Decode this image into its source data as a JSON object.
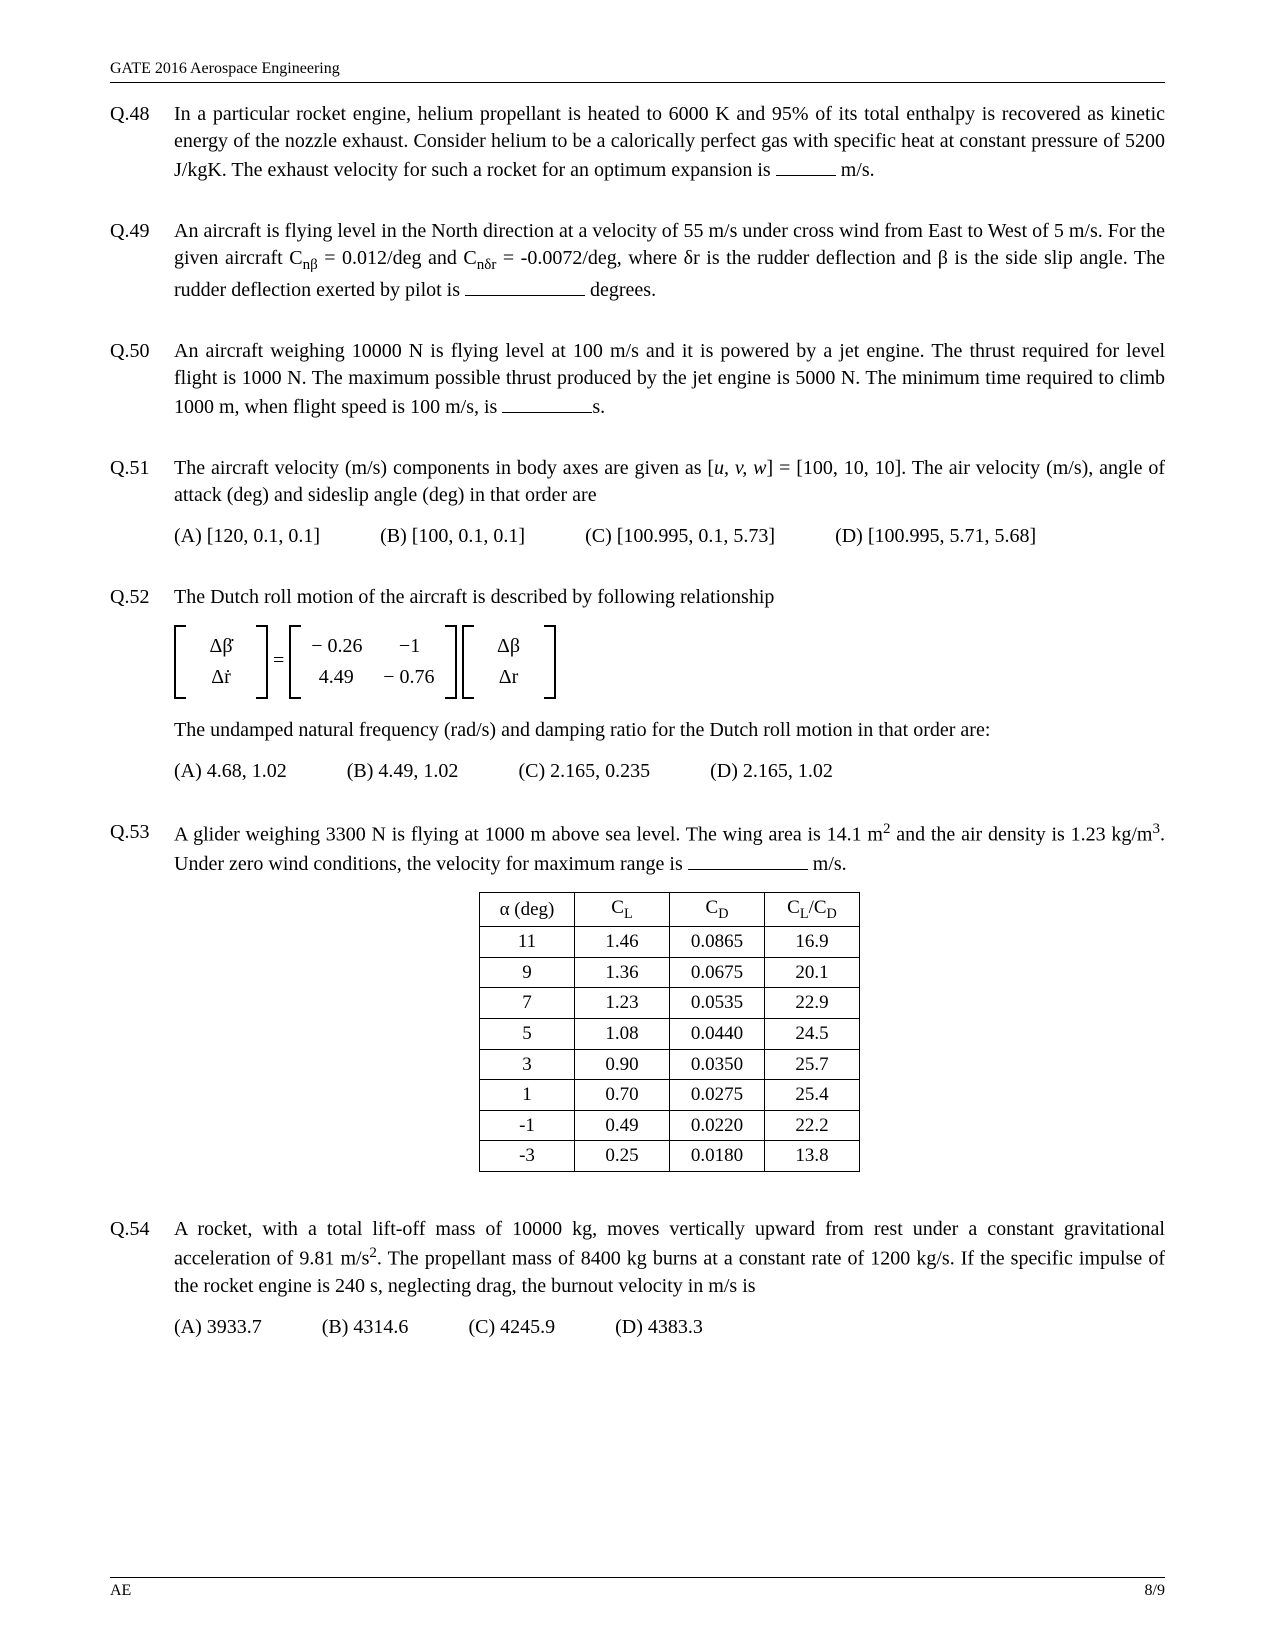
{
  "header": {
    "text": "GATE 2016 Aerospace Engineering"
  },
  "footer": {
    "left": "AE",
    "right": "8/9"
  },
  "questions": {
    "q48": {
      "num": "Q.48",
      "text": "In a particular rocket engine, helium propellant is heated to 6000 K and 95% of its total enthalpy is recovered as kinetic energy of the nozzle exhaust. Consider helium to be a calorically perfect gas with specific heat at constant pressure of 5200 J/kgK. The exhaust velocity for such a rocket for an optimum expansion is ",
      "tail": " m/s."
    },
    "q49": {
      "num": "Q.49",
      "text_a": "An aircraft is flying level in the North direction at a velocity of 55 m/s under cross wind from East to West of 5 m/s. For the given aircraft C",
      "sub1": "nβ",
      "text_b": " = 0.012/deg and C",
      "sub2": "nδr",
      "text_c": " = -0.0072/deg, where δr is the rudder deflection and β is the side slip angle. The rudder deflection exerted by pilot is ",
      "tail": " degrees."
    },
    "q50": {
      "num": "Q.50",
      "text": "An aircraft weighing 10000 N is flying level at 100 m/s and it is powered by a jet engine. The thrust required for level flight is 1000 N. The maximum possible thrust produced by the jet engine is 5000 N. The minimum time required to climb 1000 m, when flight speed is 100 m/s, is ",
      "tail": "s."
    },
    "q51": {
      "num": "Q.51",
      "text_a": "The aircraft velocity (m/s) components in body axes are given as [",
      "uvw": "u, v, w",
      "text_b": "] = [100, 10, 10]. The air velocity (m/s), angle of attack (deg) and sideslip angle (deg) in that order are",
      "opts": {
        "a": "(A) [120, 0.1, 0.1]",
        "b": "(B) [100, 0.1, 0.1]",
        "c": "(C)  [100.995, 0.1, 5.73]",
        "d": "(D)  [100.995, 5.71, 5.68]"
      }
    },
    "q52": {
      "num": "Q.52",
      "intro": "The Dutch roll motion of the aircraft is described by following relationship",
      "lhs": {
        "r0": "Δβ̇",
        "r1": "Δṙ"
      },
      "A": {
        "r0c0": "− 0.26",
        "r0c1": "−1",
        "r1c0": "4.49",
        "r1c1": "− 0.76"
      },
      "rhs": {
        "r0": "Δβ",
        "r1": "Δr"
      },
      "aftertext": "The undamped natural frequency (rad/s) and damping ratio for the Dutch roll motion in that order are:",
      "opts": {
        "a": "(A) 4.68, 1.02",
        "b": "(B) 4.49, 1.02",
        "c": "(C) 2.165, 0.235",
        "d": "(D) 2.165, 1.02"
      }
    },
    "q53": {
      "num": "Q.53",
      "text_a": "A glider weighing 3300 N is flying at 1000 m above sea level. The wing area is 14.1 m",
      "sup1": "2",
      "text_b": " and the air density is 1.23 kg/m",
      "sup2": "3",
      "text_c": ". Under zero wind conditions, the velocity for maximum range is ",
      "tail": " m/s.",
      "table": {
        "headers": {
          "h0": "α  (deg)",
          "h1": "C",
          "h1sub": "L",
          "h2": "C",
          "h2sub": "D",
          "h3a": "C",
          "h3sub1": "L",
          "h3mid": "/C",
          "h3sub2": "D"
        },
        "rows": [
          {
            "c0": "11",
            "c1": "1.46",
            "c2": "0.0865",
            "c3": "16.9"
          },
          {
            "c0": "9",
            "c1": "1.36",
            "c2": "0.0675",
            "c3": "20.1"
          },
          {
            "c0": "7",
            "c1": "1.23",
            "c2": "0.0535",
            "c3": "22.9"
          },
          {
            "c0": "5",
            "c1": "1.08",
            "c2": "0.0440",
            "c3": "24.5"
          },
          {
            "c0": "3",
            "c1": "0.90",
            "c2": "0.0350",
            "c3": "25.7"
          },
          {
            "c0": "1",
            "c1": "0.70",
            "c2": "0.0275",
            "c3": "25.4"
          },
          {
            "c0": "-1",
            "c1": "0.49",
            "c2": "0.0220",
            "c3": "22.2"
          },
          {
            "c0": "-3",
            "c1": "0.25",
            "c2": "0.0180",
            "c3": "13.8"
          }
        ]
      }
    },
    "q54": {
      "num": "Q.54",
      "text_a": "A rocket, with a total lift-off mass of 10000 kg, moves vertically upward from rest under a constant gravitational acceleration of 9.81 m/s",
      "sup1": "2",
      "text_b": ". The propellant mass of 8400 kg burns at a constant rate of 1200 kg/s. If the specific impulse of the rocket engine is 240 s, neglecting drag, the burnout velocity in m/s is",
      "opts": {
        "a": "(A)  3933.7",
        "b": "(B) 4314.6",
        "c": "(C)  4245.9",
        "d": "(D)  4383.3"
      }
    }
  }
}
